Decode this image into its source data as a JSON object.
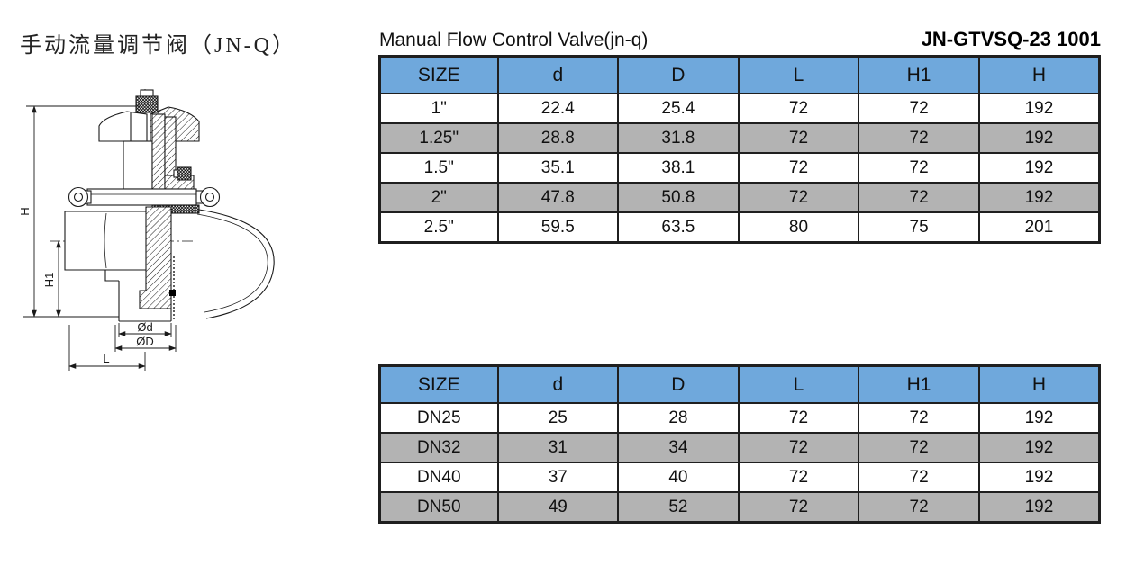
{
  "titles": {
    "chinese": "手动流量调节阀（JN-Q）",
    "english": "Manual Flow Control Valve(jn-q)",
    "model_code": "JN-GTVSQ-23 1001"
  },
  "colors": {
    "header_blue": "#6fa8dc",
    "row_gray": "#b3b3b3",
    "row_white": "#ffffff",
    "line_black": "#1a1a1a"
  },
  "drawing": {
    "description": "cross-section technical drawing of manual flow control valve with handwheel, clamp ferrule and dimension lines",
    "dimension_labels": {
      "height_total": "H",
      "height_center": "H1",
      "inner_diameter": "Ød",
      "outer_diameter": "ØD",
      "length": "L"
    }
  },
  "table1": {
    "headers": [
      "SIZE",
      "d",
      "D",
      "L",
      "H1",
      "H"
    ],
    "rows": [
      [
        "1\"",
        "22.4",
        "25.4",
        "72",
        "72",
        "192"
      ],
      [
        "1.25\"",
        "28.8",
        "31.8",
        "72",
        "72",
        "192"
      ],
      [
        "1.5\"",
        "35.1",
        "38.1",
        "72",
        "72",
        "192"
      ],
      [
        "2\"",
        "47.8",
        "50.8",
        "72",
        "72",
        "192"
      ],
      [
        "2.5\"",
        "59.5",
        "63.5",
        "80",
        "75",
        "201"
      ]
    ]
  },
  "table2": {
    "headers": [
      "SIZE",
      "d",
      "D",
      "L",
      "H1",
      "H"
    ],
    "rows": [
      [
        "DN25",
        "25",
        "28",
        "72",
        "72",
        "192"
      ],
      [
        "DN32",
        "31",
        "34",
        "72",
        "72",
        "192"
      ],
      [
        "DN40",
        "37",
        "40",
        "72",
        "72",
        "192"
      ],
      [
        "DN50",
        "49",
        "52",
        "72",
        "72",
        "192"
      ]
    ]
  }
}
